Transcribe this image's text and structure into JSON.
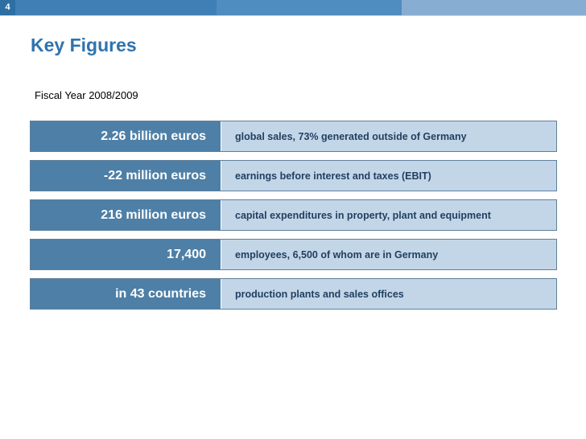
{
  "header": {
    "slide_number": "4",
    "title": "Key Figures",
    "subtitle": "Fiscal Year 2008/2009"
  },
  "figures": [
    {
      "value": "2.26 billion euros",
      "description": "global sales, 73% generated outside of Germany"
    },
    {
      "value": "-22 million euros",
      "description": "earnings before interest and taxes (EBIT)"
    },
    {
      "value": "216 million euros",
      "description": "capital expenditures in property, plant and equipment"
    },
    {
      "value": "17,400",
      "description": "employees, 6,500 of whom are in Germany"
    },
    {
      "value": "in 43 countries",
      "description": "production plants and sales offices"
    }
  ],
  "colors": {
    "accent": "#2f73ad",
    "value_cell": "#4e7fa6",
    "description_cell": "#c3d6e8"
  }
}
